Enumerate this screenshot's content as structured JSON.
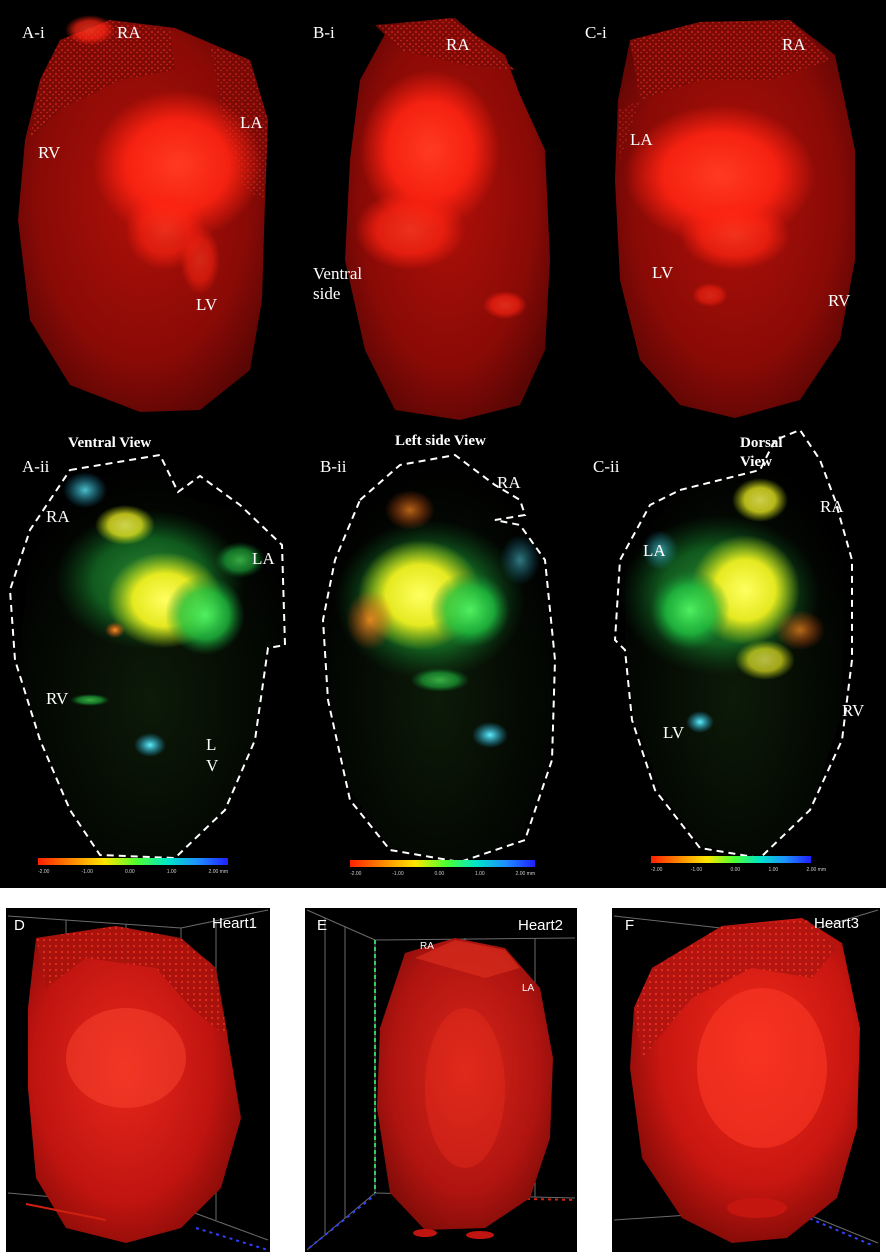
{
  "top_figure": {
    "row1": {
      "A": {
        "panel_label": "A-i",
        "labels": {
          "ra": "RA",
          "la": "LA",
          "rv": "RV",
          "lv": "LV"
        }
      },
      "B": {
        "panel_label": "B-i",
        "labels": {
          "ra": "RA",
          "side_line1": "Ventral",
          "side_line2": "side"
        }
      },
      "C": {
        "panel_label": "C-i",
        "labels": {
          "ra": "RA",
          "la": "LA",
          "lv": "LV",
          "rv": "RV"
        }
      }
    },
    "row2": {
      "A": {
        "panel_label": "A-ii",
        "title": "Ventral View",
        "labels": {
          "ra": "RA",
          "la": "LA",
          "rv": "RV",
          "lv_line1": "L",
          "lv_line2": "V"
        }
      },
      "B": {
        "panel_label": "B-ii",
        "title": "Left side View",
        "labels": {
          "ra": "RA"
        }
      },
      "C": {
        "panel_label": "C-ii",
        "title_line1": "Dorsal",
        "title_line2": "View",
        "labels": {
          "ra": "RA",
          "la": "LA",
          "lv": "LV",
          "rv": "RV"
        }
      }
    },
    "colorbar": {
      "colors": [
        "#ff2000",
        "#ff8a00",
        "#ffe600",
        "#4dff30",
        "#00e6c8",
        "#1e90ff",
        "#2020ff"
      ],
      "tick_labels": [
        "-2.00",
        "-1.00",
        "0.00",
        "1.00",
        "2.00 mm"
      ]
    }
  },
  "bottom_figure": {
    "D": {
      "panel_label": "D",
      "name": "Heart1"
    },
    "E": {
      "panel_label": "E",
      "name": "Heart2",
      "labels": {
        "ra": "RA",
        "la": "LA"
      }
    },
    "F": {
      "panel_label": "F",
      "name": "Heart3"
    }
  },
  "colors": {
    "background": "#000000",
    "heart_red": "#c81210",
    "signal_red": "#ff2a1a",
    "outline": "#ffffff"
  }
}
